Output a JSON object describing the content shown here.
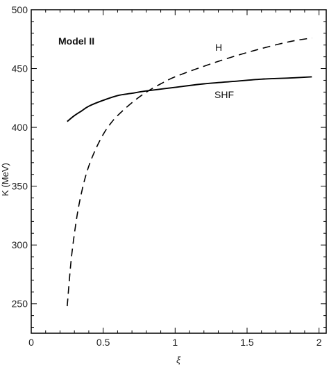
{
  "chart_data": {
    "type": "line",
    "xlabel": "ξ",
    "ylabel": "K (MeV)",
    "xlim": [
      0,
      2.05
    ],
    "ylim": [
      225,
      500
    ],
    "xticks": [
      0,
      0.5,
      1,
      1.5,
      2
    ],
    "xtick_labels": [
      "0",
      "0.5",
      "1",
      "1.5",
      "2"
    ],
    "yticks": [
      250,
      300,
      350,
      400,
      450,
      500
    ],
    "ytick_labels": [
      "250",
      "300",
      "350",
      "400",
      "450",
      "500"
    ],
    "grid": false,
    "annotation": "Model II",
    "series": [
      {
        "name": "H",
        "style": "dashed",
        "color": "#000000",
        "x": [
          0.25,
          0.28,
          0.32,
          0.36,
          0.4,
          0.45,
          0.5,
          0.55,
          0.6,
          0.7,
          0.8,
          0.9,
          1.0,
          1.2,
          1.4,
          1.6,
          1.8,
          1.95
        ],
        "y": [
          248,
          290,
          326,
          350,
          367,
          382,
          394,
          403,
          410,
          421,
          430,
          437,
          443,
          452,
          460,
          467,
          473,
          476
        ]
      },
      {
        "name": "SHF",
        "style": "solid",
        "color": "#000000",
        "x": [
          0.25,
          0.3,
          0.35,
          0.4,
          0.5,
          0.6,
          0.7,
          0.8,
          1.0,
          1.2,
          1.4,
          1.6,
          1.8,
          1.95
        ],
        "y": [
          405,
          410,
          414,
          418,
          423,
          427,
          429,
          431,
          434,
          437,
          439,
          441,
          442,
          443
        ]
      }
    ]
  }
}
